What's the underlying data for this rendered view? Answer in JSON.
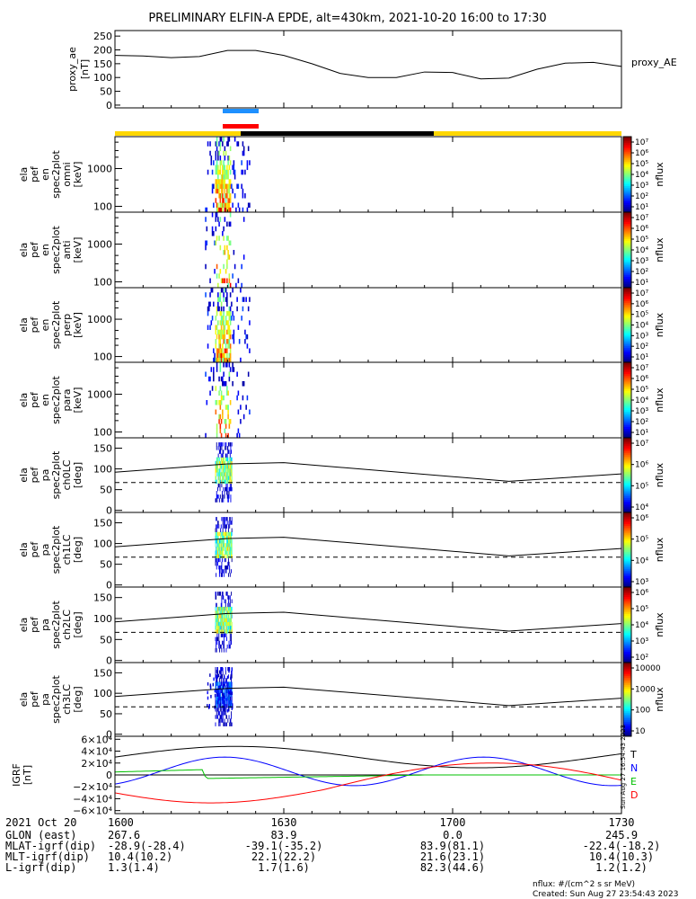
{
  "title": "PRELIMINARY ELFIN-A EPDE, alt=430km, 2021-10-20 16:00 to 17:30",
  "chart_data": [
    {
      "type": "line",
      "name": "proxy_ae",
      "ylabel": [
        "proxy_ae",
        "[nT]"
      ],
      "legend": "proxy_AE",
      "yticks": [
        "250",
        "200",
        "150",
        "100",
        "50",
        "0"
      ],
      "ytick_values": [
        250,
        200,
        150,
        100,
        50,
        0
      ],
      "ylim": [
        -10,
        270
      ],
      "x": [
        0,
        5,
        10,
        15,
        20,
        25,
        30,
        35,
        40,
        45,
        50,
        55,
        60,
        65,
        70,
        75,
        80,
        85,
        90
      ],
      "y": [
        180,
        178,
        172,
        176,
        198,
        198,
        180,
        150,
        115,
        100,
        100,
        120,
        118,
        95,
        98,
        130,
        152,
        155,
        140
      ]
    },
    {
      "type": "heatmap",
      "name": "ela_pef_en_spec2plot_omni",
      "ylabel": [
        "ela",
        "pef",
        "en",
        "spec2plot",
        "omni",
        "[keV]"
      ],
      "yticks": [
        "1000",
        "100"
      ],
      "ytick_values": [
        1000,
        100
      ],
      "ylim_log": [
        70,
        7000
      ],
      "colorbar": {
        "label": "nflux",
        "ticks": [
          "10⁷",
          "10⁶",
          "10⁵",
          "10⁴",
          "10³",
          "10²",
          "10¹"
        ]
      }
    },
    {
      "type": "heatmap",
      "name": "ela_pef_en_spec2plot_anti",
      "ylabel": [
        "ela",
        "pef",
        "en",
        "spec2plot",
        "anti",
        "[keV]"
      ],
      "yticks": [
        "1000",
        "100"
      ],
      "ytick_values": [
        1000,
        100
      ],
      "ylim_log": [
        70,
        7000
      ],
      "colorbar": {
        "label": "nflux",
        "ticks": [
          "10⁷",
          "10⁶",
          "10⁵",
          "10⁴",
          "10³",
          "10²",
          "10¹"
        ]
      }
    },
    {
      "type": "heatmap",
      "name": "ela_pef_en_spec2plot_perp",
      "ylabel": [
        "ela",
        "pef",
        "en",
        "spec2plot",
        "perp",
        "[keV]"
      ],
      "yticks": [
        "1000",
        "100"
      ],
      "ytick_values": [
        1000,
        100
      ],
      "ylim_log": [
        70,
        7000
      ],
      "colorbar": {
        "label": "nflux",
        "ticks": [
          "10⁷",
          "10⁶",
          "10⁵",
          "10⁴",
          "10³",
          "10²",
          "10¹"
        ]
      }
    },
    {
      "type": "heatmap",
      "name": "ela_pef_en_spec2plot_para",
      "ylabel": [
        "ela",
        "pef",
        "en",
        "spec2plot",
        "para",
        "[keV]"
      ],
      "yticks": [
        "1000",
        "100"
      ],
      "ytick_values": [
        1000,
        100
      ],
      "ylim_log": [
        70,
        7000
      ],
      "colorbar": {
        "label": "nflux",
        "ticks": [
          "10⁷",
          "10⁶",
          "10⁵",
          "10⁴",
          "10³",
          "10²",
          "10¹"
        ]
      }
    },
    {
      "type": "heatmap",
      "name": "ela_pef_pa_spec2plot_ch0LC",
      "ylabel": [
        "ela",
        "pef",
        "pa",
        "spec2plot",
        "ch0LC",
        "[deg]"
      ],
      "yticks": [
        "150",
        "100",
        "50",
        "0"
      ],
      "ytick_values": [
        150,
        100,
        50,
        0
      ],
      "ylim": [
        -5,
        175
      ],
      "colorbar": {
        "label": "nflux",
        "ticks": [
          "10⁷",
          "10⁶",
          "10⁵",
          "10⁴"
        ]
      }
    },
    {
      "type": "heatmap",
      "name": "ela_pef_pa_spec2plot_ch1LC",
      "ylabel": [
        "ela",
        "pef",
        "pa",
        "spec2plot",
        "ch1LC",
        "[deg]"
      ],
      "yticks": [
        "150",
        "100",
        "50",
        "0"
      ],
      "ytick_values": [
        150,
        100,
        50,
        0
      ],
      "ylim": [
        -5,
        175
      ],
      "colorbar": {
        "label": "nflux",
        "ticks": [
          "10⁶",
          "10⁵",
          "10⁴",
          "10³"
        ]
      }
    },
    {
      "type": "heatmap",
      "name": "ela_pef_pa_spec2plot_ch2LC",
      "ylabel": [
        "ela",
        "pef",
        "pa",
        "spec2plot",
        "ch2LC",
        "[deg]"
      ],
      "yticks": [
        "150",
        "100",
        "50",
        "0"
      ],
      "ytick_values": [
        150,
        100,
        50,
        0
      ],
      "ylim": [
        -5,
        175
      ],
      "colorbar": {
        "label": "nflux",
        "ticks": [
          "10⁶",
          "10⁵",
          "10⁴",
          "10³",
          "10²"
        ]
      }
    },
    {
      "type": "heatmap",
      "name": "ela_pef_pa_spec2plot_ch3LC",
      "ylabel": [
        "ela",
        "pef",
        "pa",
        "spec2plot",
        "ch3LC",
        "[deg]"
      ],
      "yticks": [
        "150",
        "100",
        "50",
        "0"
      ],
      "ytick_values": [
        150,
        100,
        50,
        0
      ],
      "ylim": [
        -5,
        175
      ],
      "colorbar": {
        "label": "nflux",
        "ticks": [
          "10000",
          "1000",
          "100",
          "10"
        ]
      }
    },
    {
      "type": "line",
      "name": "IGRF",
      "ylabel": [
        "IGRF",
        "[nT]"
      ],
      "yticks": [
        "6×10⁴",
        "4×10⁴",
        "2×10⁴",
        "0",
        "−2×10⁴",
        "−4×10⁴",
        "−6×10⁴"
      ],
      "ytick_values": [
        60000,
        40000,
        20000,
        0,
        -20000,
        -40000,
        -60000
      ],
      "ylim": [
        -65000,
        65000
      ],
      "legend": [
        "T",
        "N",
        "E",
        "D"
      ],
      "legend_colors": [
        "#000000",
        "#0000ff",
        "#00c000",
        "#ff0000"
      ]
    }
  ],
  "time_axis": {
    "ticks": [
      "1600",
      "1630",
      "1700",
      "1730"
    ],
    "row_labels": [
      "2021 Oct 20",
      "GLON (east)",
      "MLAT-igrf(dip)",
      "MLT-igrf(dip)",
      "L-igrf(dip)"
    ],
    "row_values": [
      [
        "1600",
        "1630",
        "1700",
        "1730"
      ],
      [
        "267.6",
        "83.9",
        "0.0",
        "245.9"
      ],
      [
        "-28.9(-28.4)",
        "-39.1(-35.2)",
        "83.9(81.1)",
        "-22.4(-18.2)"
      ],
      [
        "10.4(10.2)",
        "22.1(22.2)",
        "21.6(23.1)",
        "10.4(10.3)"
      ],
      [
        "1.3(1.4)",
        "1.7(1.6)",
        "82.3(44.6)",
        "1.2(1.2)"
      ]
    ]
  },
  "footer": {
    "units": "nflux: #/(cm^2 s sr MeV)",
    "created": "Created: Sun Aug 27 23:54:43 2023",
    "side_stamp": "Sun Aug 27 16:54:43 2023"
  },
  "colors": {
    "sun_bar": "#ffd700",
    "shadow_bar": "#000000",
    "science_blue": "#1e90ff",
    "science_red": "#ff0000"
  }
}
